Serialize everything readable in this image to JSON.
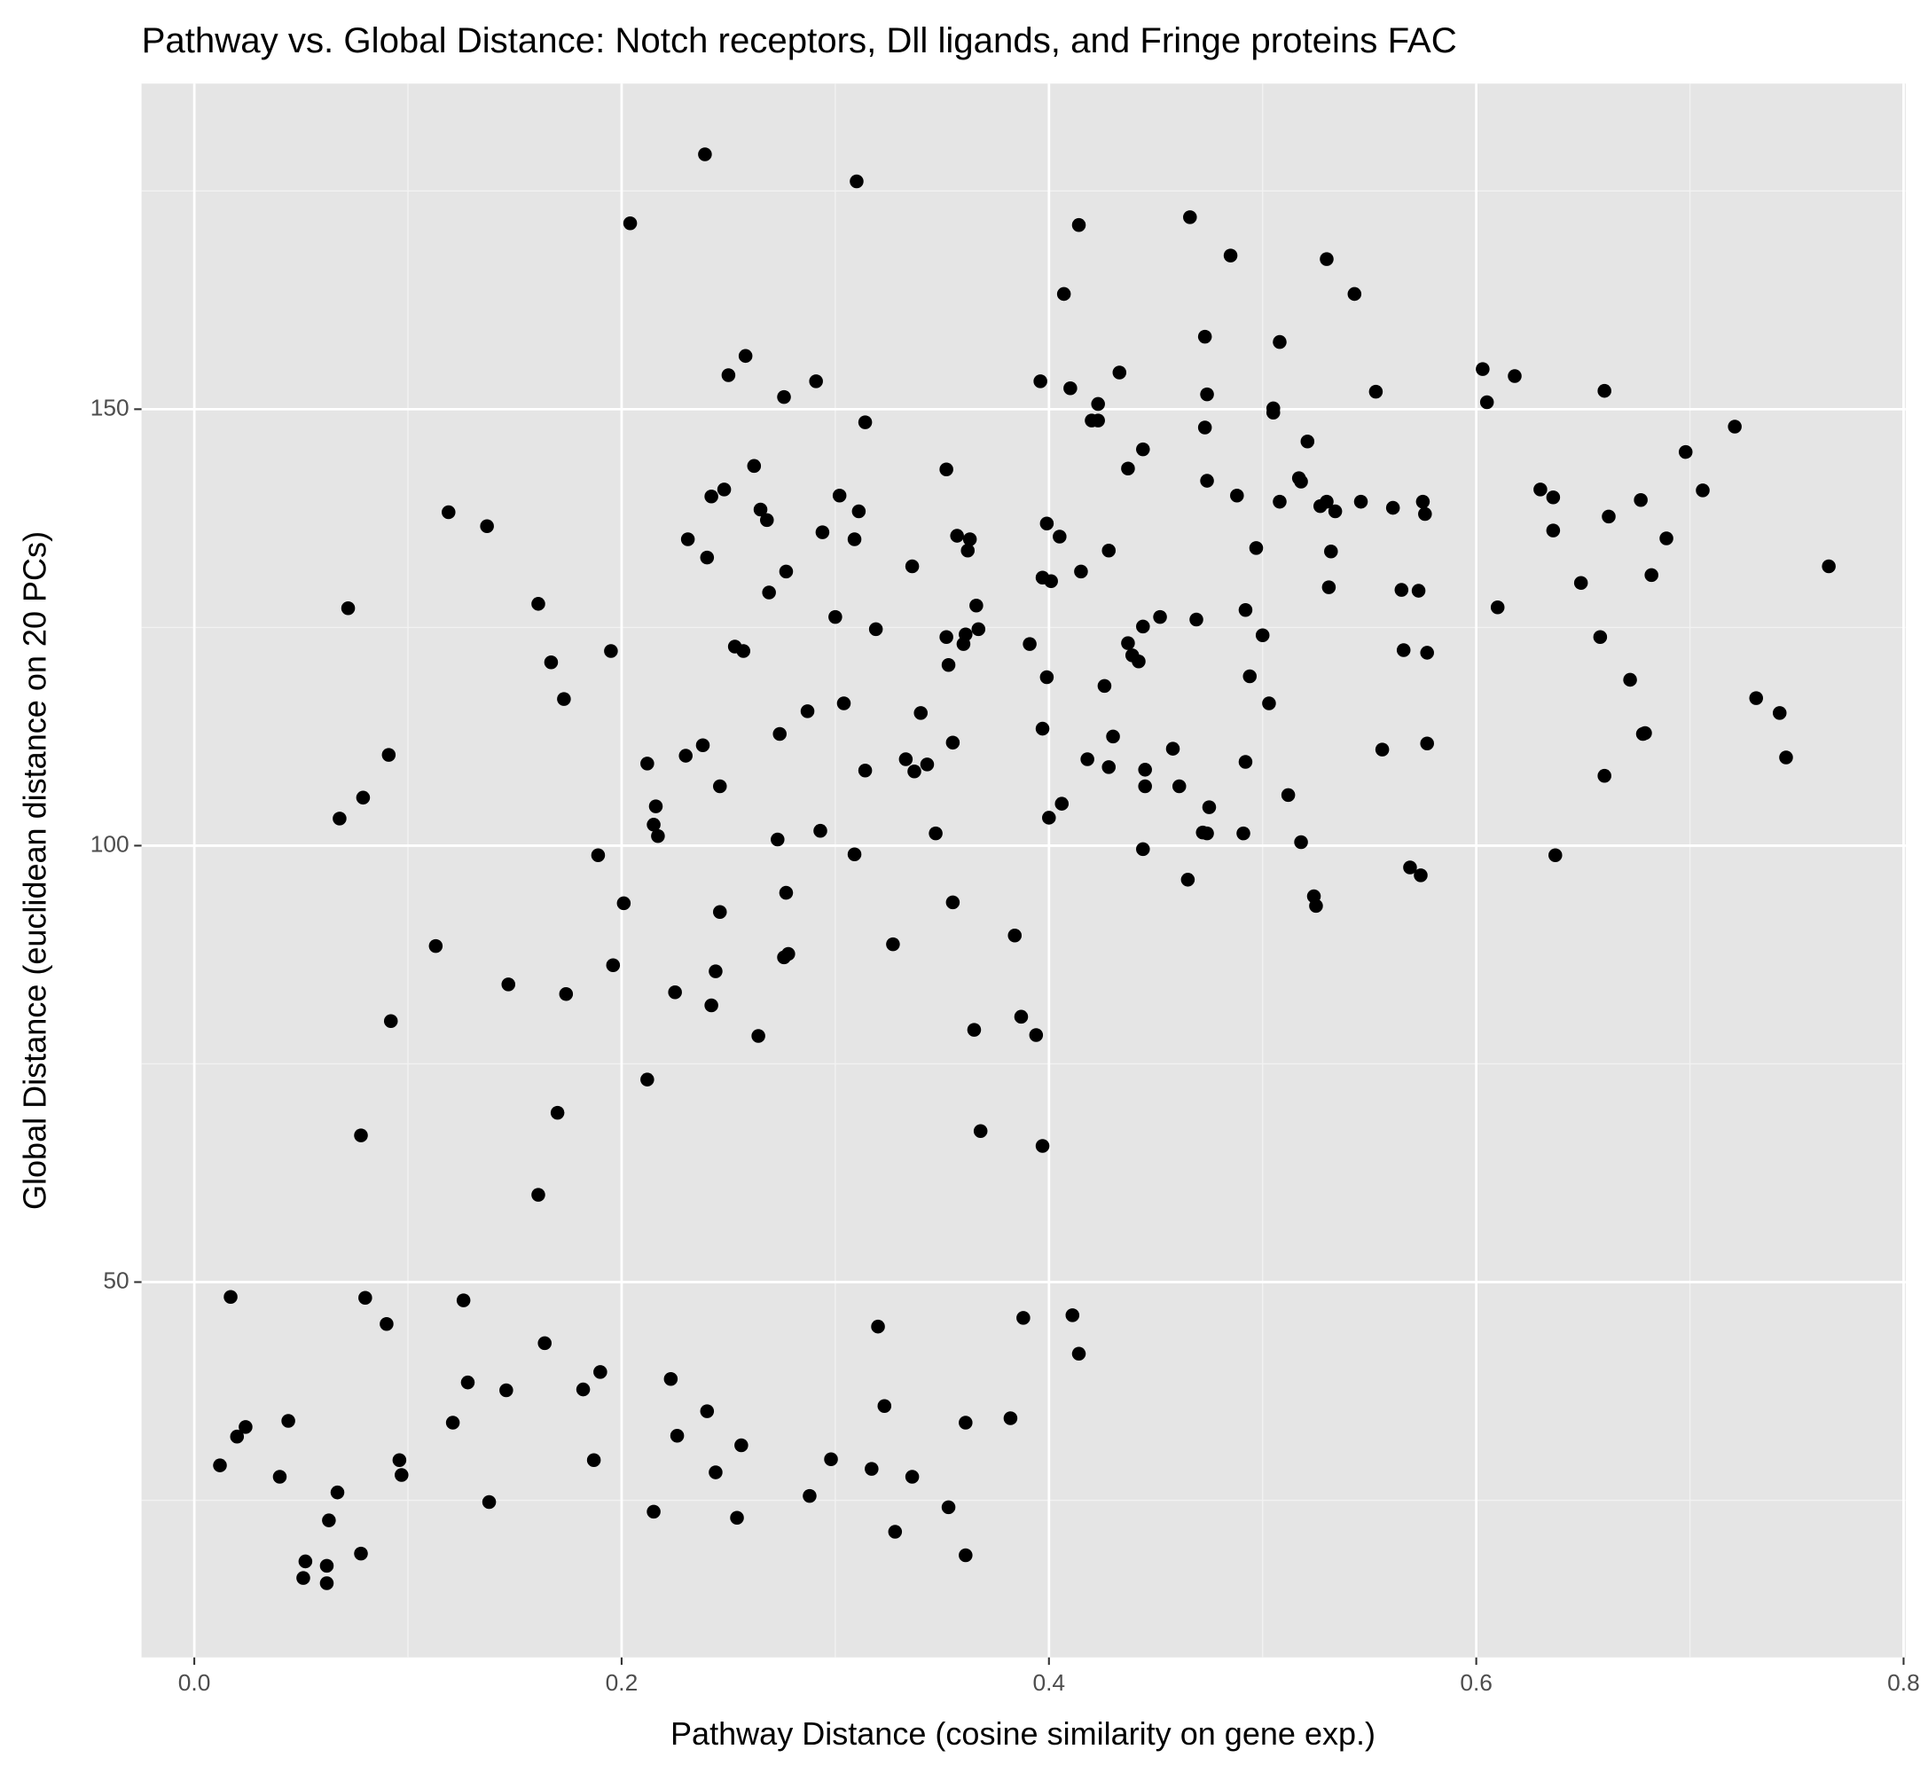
{
  "chart_data": {
    "type": "scatter",
    "title": "Pathway vs. Global Distance: Notch receptors, Dll ligands, and Fringe proteins FAC",
    "x_label": "Pathway Distance (cosine similarity on gene exp.)",
    "y_label": "Global Distance (euclidean distance on 20 PCs)",
    "color": "#000000",
    "grid": true,
    "xlim": [
      -0.0247,
      0.801
    ],
    "ylim": [
      7.0,
      187.3
    ],
    "xticks": [
      {
        "value": 0,
        "label": "0.0"
      },
      0.2,
      0.4,
      0.6,
      0.8
    ],
    "yticks": [
      50,
      100,
      150
    ],
    "xminor": [
      0.1,
      0.3,
      0.5,
      0.7
    ],
    "yminor": [
      25,
      75,
      125,
      175
    ],
    "x": [
      0.239,
      0.31,
      0.204,
      0.414,
      0.466,
      0.485,
      0.53,
      0.407,
      0.543,
      0.473,
      0.508,
      0.258,
      0.25,
      0.291,
      0.276,
      0.396,
      0.41,
      0.433,
      0.423,
      0.474,
      0.553,
      0.603,
      0.618,
      0.605,
      0.66,
      0.505,
      0.505,
      0.314,
      0.42,
      0.423,
      0.473,
      0.521,
      0.444,
      0.698,
      0.721,
      0.352,
      0.437,
      0.474,
      0.517,
      0.518,
      0.488,
      0.248,
      0.242,
      0.302,
      0.508,
      0.53,
      0.534,
      0.527,
      0.546,
      0.561,
      0.575,
      0.576,
      0.63,
      0.636,
      0.677,
      0.706,
      0.662,
      0.636,
      0.689,
      0.119,
      0.137,
      0.262,
      0.265,
      0.268,
      0.311,
      0.294,
      0.309,
      0.231,
      0.24,
      0.357,
      0.363,
      0.362,
      0.399,
      0.405,
      0.336,
      0.428,
      0.497,
      0.532,
      0.277,
      0.397,
      0.401,
      0.415,
      0.649,
      0.682,
      0.765,
      0.269,
      0.531,
      0.565,
      0.573,
      0.072,
      0.161,
      0.3,
      0.366,
      0.452,
      0.469,
      0.492,
      0.61,
      0.319,
      0.367,
      0.361,
      0.352,
      0.444,
      0.5,
      0.658,
      0.253,
      0.257,
      0.195,
      0.36,
      0.391,
      0.437,
      0.439,
      0.566,
      0.577,
      0.167,
      0.353,
      0.442,
      0.426,
      0.399,
      0.494,
      0.672,
      0.173,
      0.304,
      0.503,
      0.731,
      0.742,
      0.287,
      0.34,
      0.274,
      0.397,
      0.43,
      0.678,
      0.679,
      0.238,
      0.355,
      0.458,
      0.556,
      0.577,
      0.091,
      0.23,
      0.212,
      0.333,
      0.343,
      0.418,
      0.428,
      0.492,
      0.745,
      0.314,
      0.337,
      0.445,
      0.66,
      0.246,
      0.445,
      0.461,
      0.079,
      0.512,
      0.216,
      0.215,
      0.406,
      0.475,
      0.068,
      0.4,
      0.217,
      0.293,
      0.273,
      0.347,
      0.472,
      0.474,
      0.491,
      0.518,
      0.189,
      0.309,
      0.444,
      0.637,
      0.569,
      0.574,
      0.465,
      0.277,
      0.524,
      0.355,
      0.525,
      0.201,
      0.246,
      0.384,
      0.327,
      0.113,
      0.278,
      0.276,
      0.196,
      0.244,
      0.147,
      0.225,
      0.174,
      0.242,
      0.387,
      0.092,
      0.365,
      0.394,
      0.264,
      0.212,
      0.17,
      0.368,
      0.078,
      0.397,
      0.161,
      0.017,
      0.08,
      0.126,
      0.09,
      0.32,
      0.388,
      0.411,
      0.164,
      0.414,
      0.19,
      0.223,
      0.128,
      0.182,
      0.146,
      0.323,
      0.24,
      0.044,
      0.121,
      0.361,
      0.382,
      0.024,
      0.02,
      0.226,
      0.256,
      0.012,
      0.096,
      0.187,
      0.298,
      0.097,
      0.04,
      0.244,
      0.317,
      0.336,
      0.067,
      0.138,
      0.288,
      0.215,
      0.353,
      0.063,
      0.254,
      0.328,
      0.078,
      0.361,
      0.052,
      0.062,
      0.051,
      0.062
    ],
    "values": [
      179.2,
      176.1,
      171.3,
      171.1,
      172.0,
      167.6,
      167.2,
      163.2,
      163.2,
      158.3,
      157.7,
      156.1,
      153.9,
      153.2,
      151.4,
      153.2,
      152.4,
      154.2,
      150.6,
      151.7,
      152.0,
      154.6,
      153.8,
      150.8,
      152.1,
      150.1,
      149.6,
      148.5,
      148.7,
      148.7,
      147.9,
      146.3,
      145.4,
      145.1,
      148.0,
      143.1,
      143.2,
      141.8,
      142.1,
      141.7,
      140.1,
      140.8,
      140.0,
      140.1,
      139.4,
      139.4,
      138.3,
      138.9,
      139.4,
      138.7,
      139.4,
      138.0,
      140.8,
      139.9,
      139.6,
      140.7,
      137.7,
      136.1,
      135.2,
      138.2,
      136.6,
      143.5,
      138.5,
      137.3,
      138.3,
      135.9,
      135.1,
      135.1,
      133.0,
      135.5,
      135.1,
      133.8,
      136.9,
      135.4,
      132.0,
      133.8,
      134.1,
      133.7,
      131.4,
      130.7,
      130.3,
      131.4,
      130.1,
      131.0,
      132.0,
      129.0,
      129.6,
      129.3,
      129.2,
      127.2,
      127.7,
      126.2,
      127.5,
      126.2,
      125.9,
      127.0,
      127.3,
      124.8,
      124.8,
      124.2,
      123.9,
      125.1,
      124.1,
      123.9,
      122.8,
      122.3,
      122.3,
      123.1,
      123.1,
      123.2,
      121.8,
      122.4,
      122.1,
      121.0,
      120.7,
      121.1,
      118.3,
      119.3,
      119.4,
      119.0,
      116.8,
      116.3,
      116.3,
      116.9,
      115.2,
      115.4,
      115.2,
      112.8,
      113.4,
      112.5,
      112.8,
      112.9,
      111.5,
      111.8,
      111.1,
      111.0,
      111.7,
      110.4,
      110.3,
      109.4,
      109.9,
      109.3,
      109.9,
      109.0,
      109.6,
      110.1,
      108.6,
      108.5,
      108.7,
      108.0,
      106.8,
      106.8,
      106.8,
      105.5,
      105.8,
      104.5,
      102.4,
      104.8,
      104.4,
      103.1,
      103.2,
      101.1,
      101.7,
      100.7,
      101.4,
      101.5,
      101.4,
      101.4,
      100.4,
      98.9,
      99.0,
      99.6,
      98.9,
      97.5,
      96.6,
      96.1,
      94.6,
      94.2,
      93.5,
      93.1,
      93.4,
      92.4,
      89.7,
      88.7,
      88.5,
      87.6,
      87.2,
      86.3,
      85.6,
      84.1,
      83.2,
      83.0,
      81.7,
      80.4,
      79.9,
      78.9,
      78.3,
      78.2,
      73.2,
      69.4,
      67.3,
      66.8,
      65.6,
      60.0,
      48.3,
      48.2,
      47.9,
      45.2,
      44.9,
      45.9,
      46.2,
      43.0,
      41.8,
      39.7,
      38.9,
      38.5,
      37.7,
      37.6,
      35.8,
      35.2,
      34.1,
      33.9,
      33.9,
      34.4,
      33.4,
      32.3,
      32.4,
      31.3,
      29.0,
      29.6,
      29.6,
      29.7,
      27.9,
      27.7,
      28.2,
      28.6,
      27.7,
      25.9,
      24.8,
      25.5,
      23.7,
      24.2,
      22.7,
      23.0,
      21.4,
      18.9,
      18.7,
      18.0,
      17.5,
      16.1,
      15.5
    ]
  }
}
